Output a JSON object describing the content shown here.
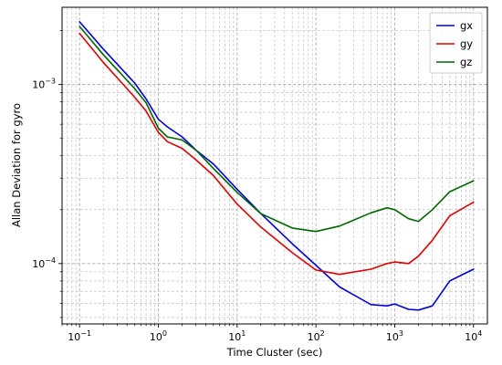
{
  "chart_data": {
    "type": "line",
    "title": "",
    "xlabel": "Time Cluster (sec)",
    "ylabel": "Allan Deviation for gyro",
    "xscale": "log",
    "yscale": "log",
    "xlim": [
      0.06,
      15000
    ],
    "ylim": [
      4.6e-05,
      0.0027
    ],
    "grid": "major and minor, dashed",
    "legend_position": "top-right",
    "x_ticks": [
      {
        "value": 0.1,
        "base": "10",
        "exp": "−1"
      },
      {
        "value": 1,
        "base": "10",
        "exp": "0"
      },
      {
        "value": 10,
        "base": "10",
        "exp": "1"
      },
      {
        "value": 100,
        "base": "10",
        "exp": "2"
      },
      {
        "value": 1000,
        "base": "10",
        "exp": "3"
      },
      {
        "value": 10000,
        "base": "10",
        "exp": "4"
      }
    ],
    "y_ticks": [
      {
        "value": 0.0001,
        "base": "10",
        "exp": "−4"
      },
      {
        "value": 0.001,
        "base": "10",
        "exp": "−3"
      }
    ],
    "x": [
      0.1,
      0.2,
      0.5,
      0.7,
      1,
      1.3,
      2,
      3,
      5,
      10,
      20,
      50,
      100,
      200,
      500,
      800,
      1000,
      1500,
      2000,
      3000,
      5000,
      10000
    ],
    "series": [
      {
        "name": "gx",
        "color": "#0000dd",
        "values": [
          0.00224,
          0.00158,
          0.00102,
          0.00083,
          0.00064,
          0.00058,
          0.00051,
          0.00043,
          0.00036,
          0.00026,
          0.00019,
          0.000129,
          9.8e-05,
          7.4e-05,
          5.9e-05,
          5.8e-05,
          5.95e-05,
          5.55e-05,
          5.5e-05,
          5.8e-05,
          8e-05,
          9.3e-05
        ]
      },
      {
        "name": "gy",
        "color": "#dd0000",
        "values": [
          0.00193,
          0.00133,
          0.00085,
          0.00071,
          0.00054,
          0.00048,
          0.00044,
          0.00038,
          0.00031,
          0.000215,
          0.00016,
          0.000115,
          9.2e-05,
          8.7e-05,
          9.3e-05,
          0.0001,
          0.000102,
          0.0001,
          0.00011,
          0.000135,
          0.000185,
          0.00022
        ]
      },
      {
        "name": "gz",
        "color": "#006600",
        "values": [
          0.00211,
          0.00147,
          0.00095,
          0.00079,
          0.00057,
          0.00051,
          0.00049,
          0.00043,
          0.00034,
          0.00025,
          0.00019,
          0.000158,
          0.000151,
          0.000162,
          0.000192,
          0.000205,
          0.0002,
          0.000178,
          0.000172,
          0.0002,
          0.000252,
          0.00029
        ]
      }
    ]
  }
}
